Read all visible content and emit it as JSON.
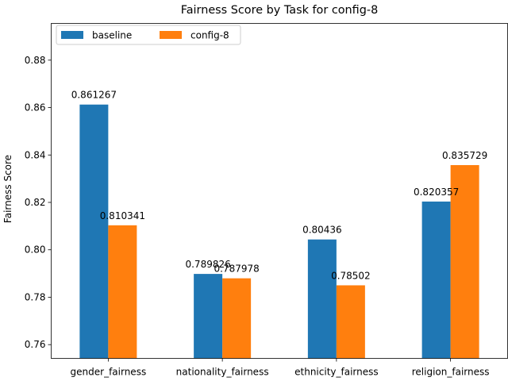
{
  "chart_data": {
    "type": "bar",
    "title": "Fairness Score by Task for config-8",
    "xlabel": "",
    "ylabel": "Fairness Score",
    "categories": [
      "gender_fairness",
      "nationality_fairness",
      "ethnicity_fairness",
      "religion_fairness"
    ],
    "series": [
      {
        "name": "baseline",
        "color": "#1f77b4",
        "values": [
          0.861267,
          0.789826,
          0.80436,
          0.820357
        ],
        "labels": [
          "0.861267",
          "0.789826",
          "0.80436",
          "0.820357"
        ]
      },
      {
        "name": "config-8",
        "color": "#ff7f0e",
        "values": [
          0.810341,
          0.787978,
          0.78502,
          0.835729
        ],
        "labels": [
          "0.810341",
          "0.787978",
          "0.78502",
          "0.835729"
        ]
      }
    ],
    "ylim": [
      0.7542,
      0.8955
    ],
    "yticks": [
      0.76,
      0.78,
      0.8,
      0.82,
      0.84,
      0.86,
      0.88
    ],
    "ytick_labels": [
      "0.76",
      "0.78",
      "0.80",
      "0.82",
      "0.84",
      "0.86",
      "0.88"
    ],
    "legend_position": "top-left",
    "grid": false
  }
}
